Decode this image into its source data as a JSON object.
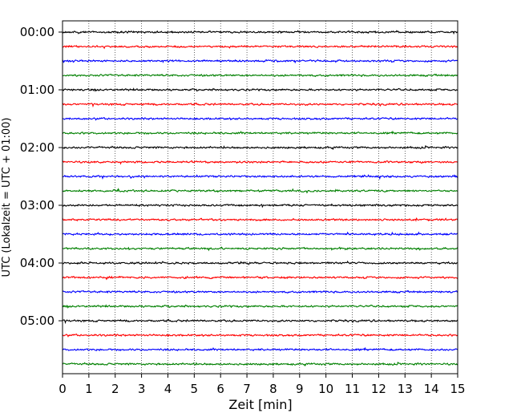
{
  "chart_data": {
    "type": "line",
    "title": "",
    "xlabel": "Zeit  [min]",
    "ylabel": "UTC (Lokalzeit = UTC + 01:00)",
    "xlim": [
      0,
      15
    ],
    "x_ticks": [
      "0",
      "1",
      "2",
      "3",
      "4",
      "5",
      "6",
      "7",
      "8",
      "9",
      "10",
      "11",
      "12",
      "13",
      "14",
      "15"
    ],
    "y_tick_labels": [
      "00:00",
      "01:00",
      "02:00",
      "03:00",
      "04:00",
      "05:00"
    ],
    "trace_interval_min": 15,
    "trace_count": 24,
    "trace_colors": [
      "#000000",
      "#ff0000",
      "#0000ff",
      "#008000"
    ],
    "vertical_grid": "dotted",
    "legend": "none"
  }
}
